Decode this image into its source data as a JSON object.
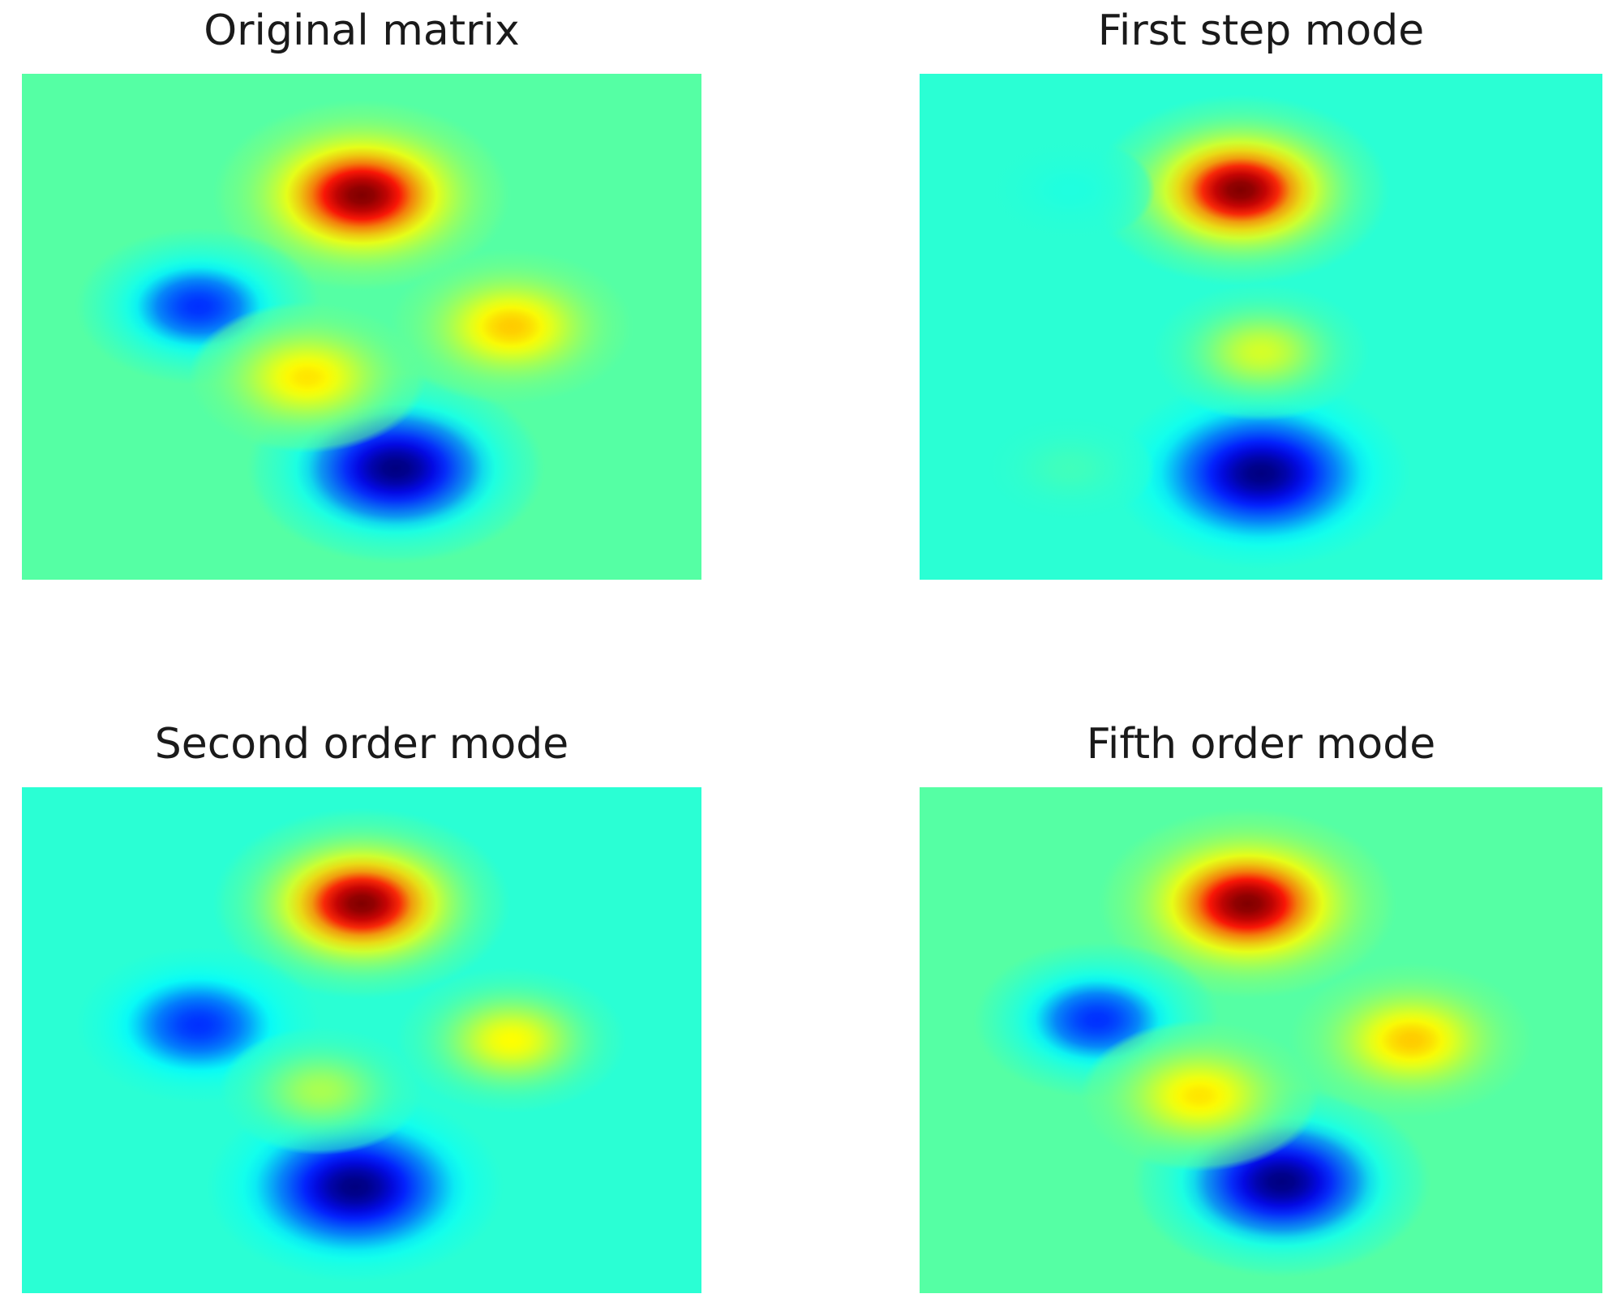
{
  "chart_data": [
    {
      "type": "heatmap",
      "title": "Original matrix",
      "colormap": "jet",
      "value_range": [
        -1,
        1
      ],
      "background_value": 0.1,
      "grid": false,
      "axes_visible": false,
      "peaks": [
        {
          "x": 0.5,
          "y": 0.24,
          "amplitude": 1.0
        },
        {
          "x": 0.55,
          "y": 0.78,
          "amplitude": -1.0
        },
        {
          "x": 0.26,
          "y": 0.46,
          "amplitude": -0.62
        },
        {
          "x": 0.72,
          "y": 0.5,
          "amplitude": 0.6
        },
        {
          "x": 0.42,
          "y": 0.6,
          "amplitude": 0.55
        }
      ]
    },
    {
      "type": "heatmap",
      "title": "First step mode",
      "colormap": "jet",
      "value_range": [
        -1,
        1
      ],
      "background_value": 0.0,
      "grid": false,
      "axes_visible": false,
      "peaks": [
        {
          "x": 0.47,
          "y": 0.23,
          "amplitude": 1.0
        },
        {
          "x": 0.5,
          "y": 0.79,
          "amplitude": -1.0
        },
        {
          "x": 0.5,
          "y": 0.55,
          "amplitude": 0.4
        },
        {
          "x": 0.22,
          "y": 0.23,
          "amplitude": -0.05
        },
        {
          "x": 0.22,
          "y": 0.78,
          "amplitude": 0.05
        }
      ]
    },
    {
      "type": "heatmap",
      "title": "Second order mode",
      "colormap": "jet",
      "value_range": [
        -1,
        1
      ],
      "background_value": 0.0,
      "grid": false,
      "axes_visible": false,
      "peaks": [
        {
          "x": 0.5,
          "y": 0.23,
          "amplitude": 1.0
        },
        {
          "x": 0.49,
          "y": 0.79,
          "amplitude": -1.0
        },
        {
          "x": 0.26,
          "y": 0.47,
          "amplitude": -0.62
        },
        {
          "x": 0.72,
          "y": 0.5,
          "amplitude": 0.5
        },
        {
          "x": 0.44,
          "y": 0.6,
          "amplitude": 0.3
        }
      ]
    },
    {
      "type": "heatmap",
      "title": "Fifth order mode",
      "colormap": "jet",
      "value_range": [
        -1,
        1
      ],
      "background_value": 0.1,
      "grid": false,
      "axes_visible": false,
      "peaks": [
        {
          "x": 0.48,
          "y": 0.23,
          "amplitude": 1.0
        },
        {
          "x": 0.53,
          "y": 0.78,
          "amplitude": -1.0
        },
        {
          "x": 0.26,
          "y": 0.46,
          "amplitude": -0.62
        },
        {
          "x": 0.72,
          "y": 0.5,
          "amplitude": 0.6
        },
        {
          "x": 0.41,
          "y": 0.61,
          "amplitude": 0.55
        }
      ]
    }
  ]
}
